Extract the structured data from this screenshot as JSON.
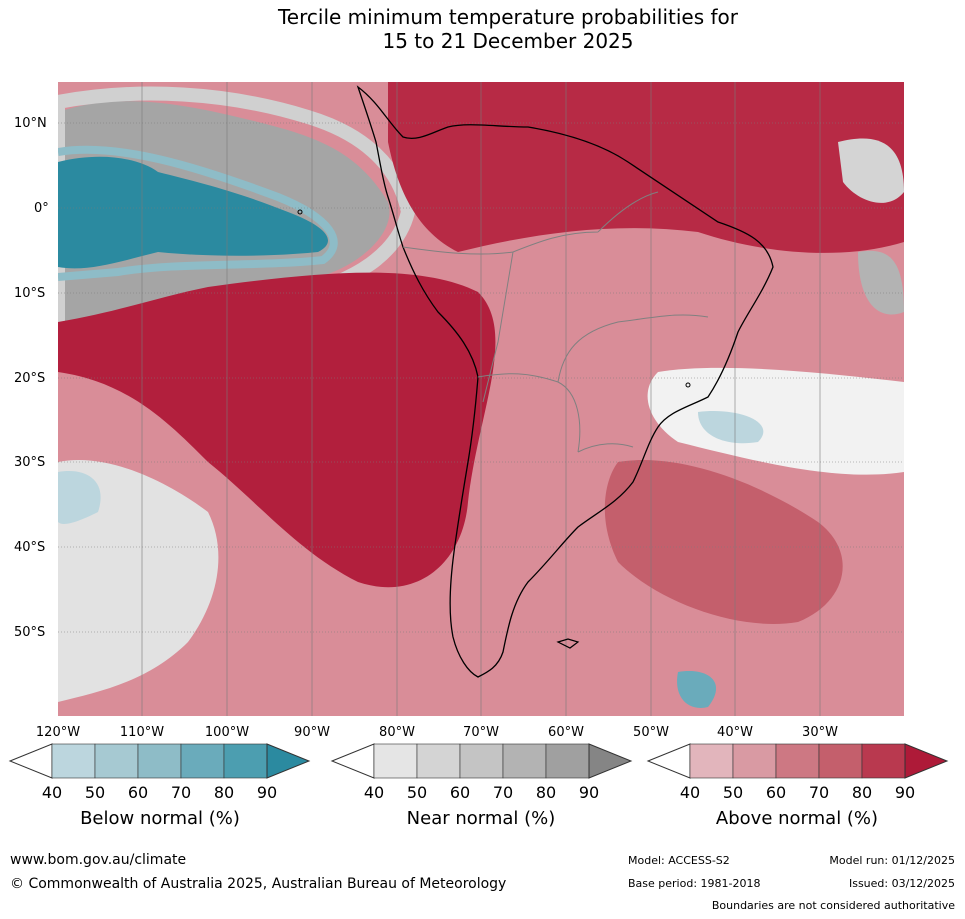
{
  "title": {
    "line1": "Tercile minimum temperature probabilities for",
    "line2": "15 to 21 December 2025"
  },
  "axes": {
    "lat_labels": [
      "10°N",
      "0°",
      "10°S",
      "20°S",
      "30°S",
      "40°S",
      "50°S"
    ],
    "lon_labels": [
      "120°W",
      "110°W",
      "100°W",
      "90°W",
      "80°W",
      "70°W",
      "60°W",
      "50°W",
      "40°W",
      "30°W"
    ]
  },
  "legend": {
    "below": {
      "label": "Below normal (%)",
      "ticks": [
        "40",
        "50",
        "60",
        "70",
        "80",
        "90"
      ],
      "colors": [
        "#bcd6de",
        "#a6c9d2",
        "#8ebcc7",
        "#6aabbb",
        "#4c9eb0",
        "#2b8aa0"
      ]
    },
    "near": {
      "label": "Near normal (%)",
      "ticks": [
        "40",
        "50",
        "60",
        "70",
        "80",
        "90"
      ],
      "colors": [
        "#e5e5e5",
        "#d4d4d4",
        "#c4c4c4",
        "#b3b3b3",
        "#a0a0a0",
        "#858585"
      ]
    },
    "above": {
      "label": "Above normal (%)",
      "ticks": [
        "40",
        "50",
        "60",
        "70",
        "80",
        "90"
      ],
      "colors": [
        "#e2b5bc",
        "#d99aa3",
        "#cd7883",
        "#c45f6c",
        "#b9394f",
        "#ae1a38"
      ]
    }
  },
  "footer": {
    "url": "www.bom.gov.au/climate",
    "copyright": "© Commonwealth of Australia 2025, Australian Bureau of Meteorology",
    "model": "Model: ACCESS-S2",
    "base_period": "Base period: 1981-2018",
    "model_run": "Model run: 01/12/2025",
    "issued": "Issued: 03/12/2025",
    "disclaimer": "Boundaries are not considered authoritative"
  }
}
